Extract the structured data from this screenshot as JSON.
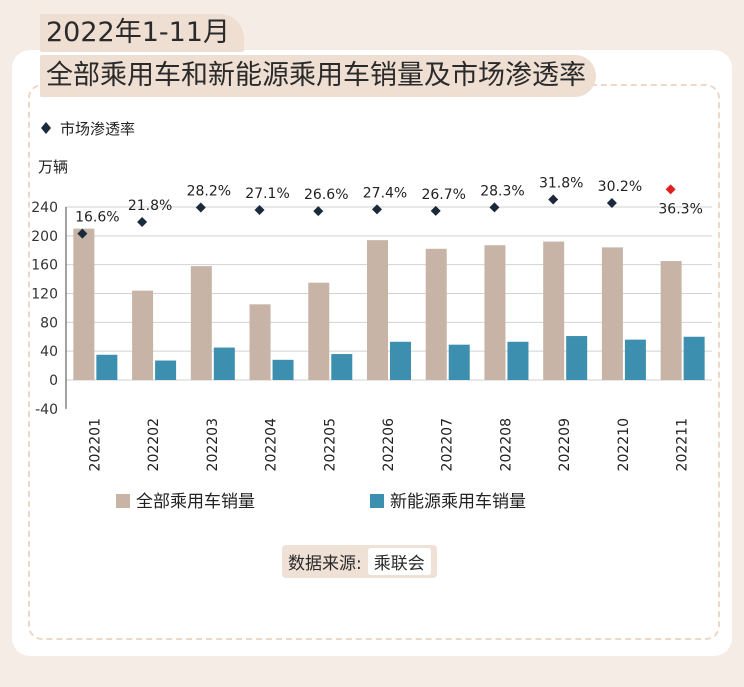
{
  "title": {
    "line1": "2022年1-11月",
    "line2": "全部乘用车和新能源乘用车销量及市场渗透率"
  },
  "source": {
    "label": "数据来源:",
    "value": "乘联会"
  },
  "colors": {
    "total": "#c7b4a6",
    "nev": "#3c8fae",
    "marker": "#1b2a3a",
    "marker_highlight": "#e02020"
  },
  "chart_data": {
    "type": "bar",
    "categories": [
      "202201",
      "202202",
      "202203",
      "202204",
      "202205",
      "202206",
      "202207",
      "202208",
      "202209",
      "202210",
      "202211"
    ],
    "ylabel": "万辆",
    "ylim": [
      -40,
      240
    ],
    "yticks": [
      240,
      200,
      160,
      120,
      80,
      40,
      0,
      -40
    ],
    "grid": true,
    "series": [
      {
        "name": "全部乘用车销量",
        "values": [
          210,
          124,
          158,
          105,
          135,
          194,
          182,
          187,
          192,
          184,
          165
        ]
      },
      {
        "name": "新能源乘用车销量",
        "values": [
          35,
          27,
          45,
          28,
          36,
          53,
          49,
          53,
          61,
          56,
          60
        ]
      }
    ],
    "line_series": {
      "name": "市场渗透率",
      "values": [
        16.6,
        21.8,
        28.2,
        27.1,
        26.6,
        27.4,
        26.7,
        28.3,
        31.8,
        30.2,
        36.3
      ],
      "labels": [
        "16.6%",
        "21.8%",
        "28.2%",
        "27.1%",
        "26.6%",
        "27.4%",
        "26.7%",
        "28.3%",
        "31.8%",
        "30.2%",
        "36.3%"
      ],
      "highlight_index": 10
    },
    "legend_top": "市场渗透率",
    "legend_position": "bottom"
  }
}
